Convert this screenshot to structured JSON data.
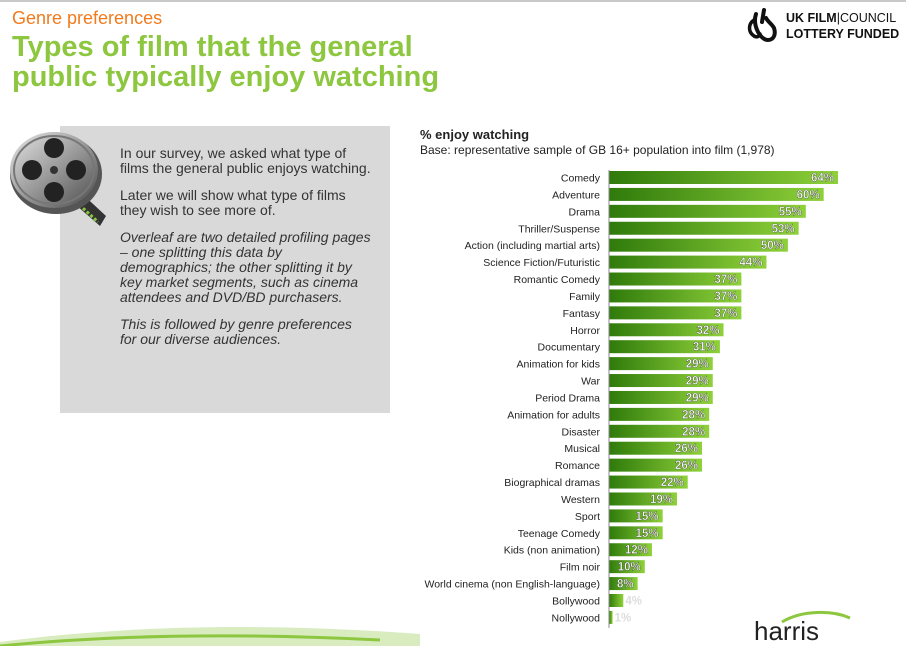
{
  "header": {
    "kicker": "Genre preferences",
    "title_line1": "Types of film that the general",
    "title_line2": "public typically enjoy watching"
  },
  "logo": {
    "line1_bold": "UK FILM",
    "line1_light": "COUNCIL",
    "line2": "LOTTERY FUNDED",
    "icon": "crossed-fingers-icon"
  },
  "info_box": {
    "icon": "film-reel-icon",
    "p1": "In our survey, we asked what type of films the general public enjoys watching.",
    "p2": "Later we will show what type of films they wish to see more of.",
    "p3": "Overleaf are two detailed profiling pages – one splitting this data by demographics; the other splitting it by key market segments, such as cinema attendees and DVD/BD purchasers.",
    "p4": "This is followed by genre preferences for our diverse audiences."
  },
  "footer": {
    "brand": "harris"
  },
  "chart_data": {
    "type": "bar",
    "orientation": "horizontal",
    "title": "% enjoy watching",
    "subtitle": "Base: representative sample of GB 16+ population into film (1,978)",
    "categories": [
      "Comedy",
      "Adventure",
      "Drama",
      "Thriller/Suspense",
      "Action (including martial arts)",
      "Science Fiction/Futuristic",
      "Romantic Comedy",
      "Family",
      "Fantasy",
      "Horror",
      "Documentary",
      "Animation for kids",
      "War",
      "Period Drama",
      "Animation for adults",
      "Disaster",
      "Musical",
      "Romance",
      "Biographical dramas",
      "Western",
      "Sport",
      "Teenage Comedy",
      "Kids (non animation)",
      "Film noir",
      "World cinema (non English-language)",
      "Bollywood",
      "Nollywood"
    ],
    "values": [
      64,
      60,
      55,
      53,
      50,
      44,
      37,
      37,
      37,
      32,
      31,
      29,
      29,
      29,
      28,
      28,
      26,
      26,
      22,
      19,
      15,
      15,
      12,
      10,
      8,
      4,
      1
    ],
    "labels": [
      "64%",
      "60%",
      "55%",
      "53%",
      "50%",
      "44%",
      "37%",
      "37%",
      "37%",
      "32%",
      "31%",
      "29%",
      "29%",
      "29%",
      "28%",
      "28%",
      "26%",
      "26%",
      "22%",
      "19%",
      "15%",
      "15%",
      "12%",
      "10%",
      "8%",
      "4%",
      "1%"
    ],
    "bar_color_dark": "#2f7a0b",
    "bar_color_light": "#8fd13a",
    "xlim": [
      0,
      64
    ]
  }
}
